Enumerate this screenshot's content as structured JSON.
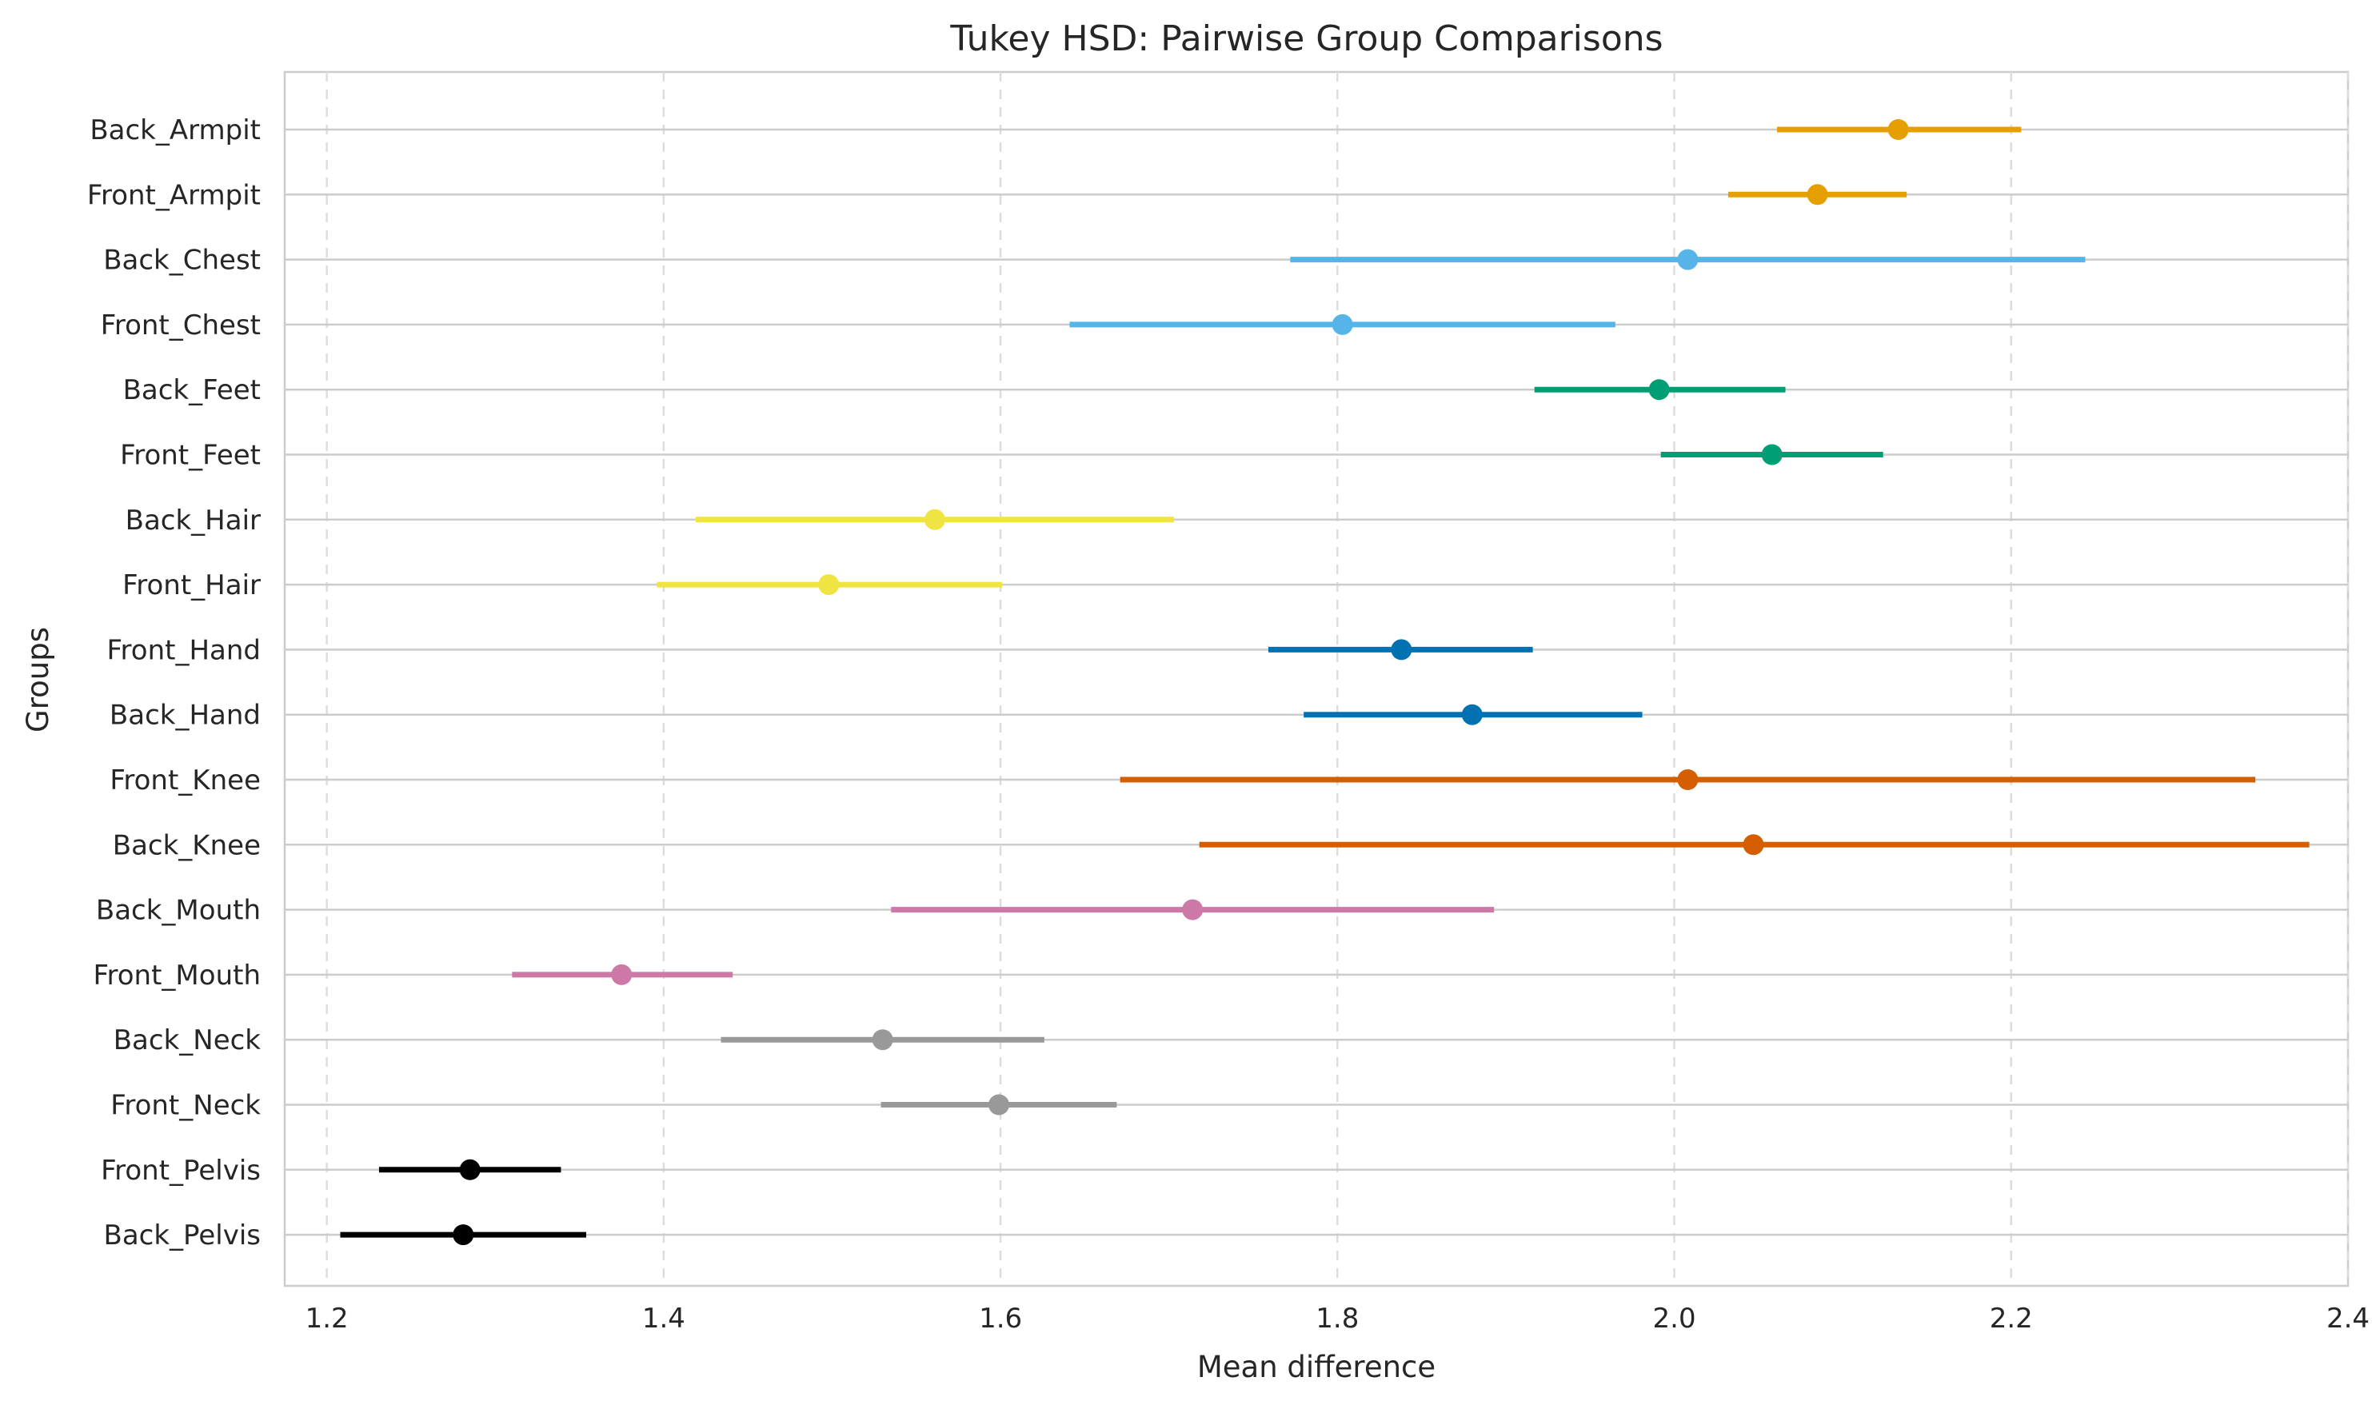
{
  "chart_data": {
    "type": "scatter",
    "title": "Tukey HSD: Pairwise Group Comparisons",
    "xlabel": "Mean difference",
    "ylabel": "Groups",
    "xlim": [
      1.175,
      2.4
    ],
    "xticks": [
      1.2,
      1.4,
      1.6,
      1.8,
      2.0,
      2.2,
      2.4
    ],
    "xtick_labels": [
      "1.2",
      "1.4",
      "1.6",
      "1.8",
      "2.0",
      "2.2",
      "2.4"
    ],
    "grid": true,
    "groups": [
      {
        "label": "Back_Armpit",
        "mean": 2.133,
        "lower": 2.061,
        "upper": 2.206,
        "color": "#E69F00"
      },
      {
        "label": "Front_Armpit",
        "mean": 2.085,
        "lower": 2.032,
        "upper": 2.138,
        "color": "#E69F00"
      },
      {
        "label": "Back_Chest",
        "mean": 2.008,
        "lower": 1.772,
        "upper": 2.244,
        "color": "#56B4E9"
      },
      {
        "label": "Front_Chest",
        "mean": 1.803,
        "lower": 1.641,
        "upper": 1.965,
        "color": "#56B4E9"
      },
      {
        "label": "Back_Feet",
        "mean": 1.991,
        "lower": 1.917,
        "upper": 2.066,
        "color": "#009E73"
      },
      {
        "label": "Front_Feet",
        "mean": 2.058,
        "lower": 1.992,
        "upper": 2.124,
        "color": "#009E73"
      },
      {
        "label": "Back_Hair",
        "mean": 1.561,
        "lower": 1.419,
        "upper": 1.703,
        "color": "#F0E442"
      },
      {
        "label": "Front_Hair",
        "mean": 1.498,
        "lower": 1.396,
        "upper": 1.601,
        "color": "#F0E442"
      },
      {
        "label": "Front_Hand",
        "mean": 1.838,
        "lower": 1.759,
        "upper": 1.916,
        "color": "#0072B2"
      },
      {
        "label": "Back_Hand",
        "mean": 1.88,
        "lower": 1.78,
        "upper": 1.981,
        "color": "#0072B2"
      },
      {
        "label": "Front_Knee",
        "mean": 2.008,
        "lower": 1.671,
        "upper": 2.345,
        "color": "#D55E00"
      },
      {
        "label": "Back_Knee",
        "mean": 2.047,
        "lower": 1.718,
        "upper": 2.377,
        "color": "#D55E00"
      },
      {
        "label": "Back_Mouth",
        "mean": 1.714,
        "lower": 1.535,
        "upper": 1.893,
        "color": "#CC79A7"
      },
      {
        "label": "Front_Mouth",
        "mean": 1.375,
        "lower": 1.31,
        "upper": 1.441,
        "color": "#CC79A7"
      },
      {
        "label": "Back_Neck",
        "mean": 1.53,
        "lower": 1.434,
        "upper": 1.626,
        "color": "#999999"
      },
      {
        "label": "Front_Neck",
        "mean": 1.599,
        "lower": 1.529,
        "upper": 1.669,
        "color": "#999999"
      },
      {
        "label": "Front_Pelvis",
        "mean": 1.285,
        "lower": 1.231,
        "upper": 1.339,
        "color": "#000000"
      },
      {
        "label": "Back_Pelvis",
        "mean": 1.281,
        "lower": 1.208,
        "upper": 1.354,
        "color": "#000000"
      }
    ]
  }
}
